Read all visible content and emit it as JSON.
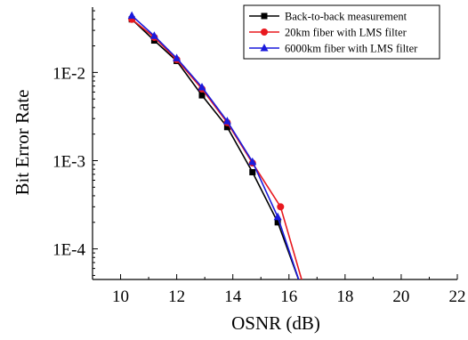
{
  "chart_data": {
    "type": "line",
    "xlabel": "OSNR (dB)",
    "ylabel": "Bit Error Rate",
    "xlim": [
      9,
      22
    ],
    "ylim": [
      4.5e-05,
      0.055
    ],
    "yscale": "log",
    "x_ticks": [
      10,
      12,
      14,
      16,
      18,
      20,
      22
    ],
    "x_tick_labels": [
      "10",
      "12",
      "14",
      "16",
      "18",
      "20",
      "22"
    ],
    "y_ticks": [
      0.0001,
      0.001,
      0.01
    ],
    "y_tick_labels": [
      "1E-4",
      "1E-3",
      "1E-2"
    ],
    "legend_position": "top-right",
    "grid": false,
    "series": [
      {
        "name": "Back-to-back measurement",
        "color": "#000000",
        "marker": "square",
        "x": [
          10.4,
          11.2,
          12.0,
          12.9,
          13.8,
          14.7,
          15.6,
          16.4
        ],
        "y": [
          0.04,
          0.023,
          0.0135,
          0.0055,
          0.0024,
          0.00074,
          0.0002,
          4e-05
        ]
      },
      {
        "name": "20km fiber with LMS filter",
        "color": "#e8191f",
        "marker": "circle",
        "x": [
          10.4,
          11.2,
          12.0,
          12.9,
          13.8,
          14.7,
          15.7,
          16.5
        ],
        "y": [
          0.04,
          0.025,
          0.014,
          0.0065,
          0.0027,
          0.00094,
          0.0003,
          4e-05
        ]
      },
      {
        "name": "6000km fiber with LMS filter",
        "color": "#1a1adc",
        "marker": "triangle",
        "x": [
          10.4,
          11.2,
          12.0,
          12.9,
          13.8,
          14.7,
          15.6,
          16.4
        ],
        "y": [
          0.044,
          0.026,
          0.0145,
          0.0068,
          0.0028,
          0.00097,
          0.00023,
          4e-05
        ]
      }
    ]
  }
}
